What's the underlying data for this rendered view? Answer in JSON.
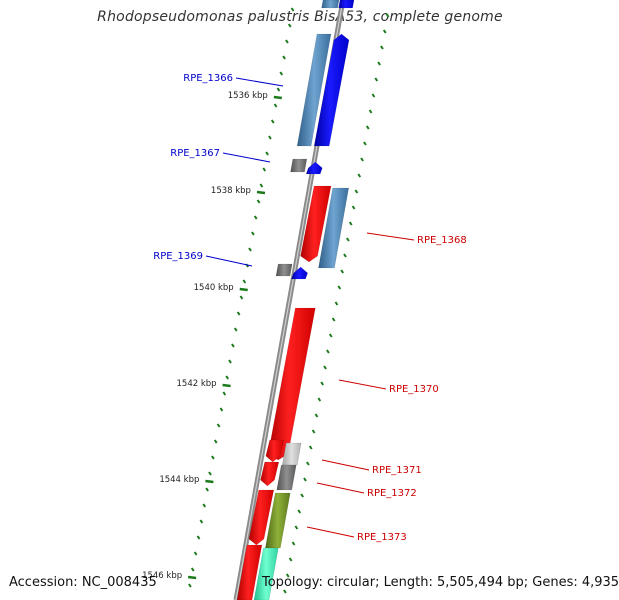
{
  "title": "Rhodopseudomonas palustris BisA53, complete genome",
  "footer": {
    "accession": "Accession: NC_008435",
    "summary": "Topology: circular; Length: 5,505,494 bp; Genes: 4,935"
  },
  "ticks": [
    {
      "label": "1536 kbp",
      "kbp": 1536
    },
    {
      "label": "1538 kbp",
      "kbp": 1538
    },
    {
      "label": "1540 kbp",
      "kbp": 1540
    },
    {
      "label": "1542 kbp",
      "kbp": 1542
    },
    {
      "label": "1544 kbp",
      "kbp": 1544
    },
    {
      "label": "1546 kbp",
      "kbp": 1546
    }
  ],
  "genes": [
    {
      "name": "RPE_1366",
      "strand": "reverse",
      "color": "#0000cc"
    },
    {
      "name": "RPE_1367",
      "strand": "reverse",
      "color": "#0000cc"
    },
    {
      "name": "RPE_1368",
      "strand": "forward",
      "color": "#cc0000"
    },
    {
      "name": "RPE_1369",
      "strand": "reverse",
      "color": "#0000cc"
    },
    {
      "name": "RPE_1370",
      "strand": "forward",
      "color": "#cc0000"
    },
    {
      "name": "RPE_1371",
      "strand": "forward",
      "color": "#cc0000"
    },
    {
      "name": "RPE_1372",
      "strand": "forward",
      "color": "#cc0000"
    },
    {
      "name": "RPE_1373",
      "strand": "forward",
      "color": "#cc0000"
    }
  ],
  "colors": {
    "forward_cds": "#ff0000",
    "reverse_cds": "#0000ff",
    "cog_steelblue": "#4682b4",
    "cog_gray": "#707070",
    "cog_lightgray": "#c0c0c0",
    "cog_olive": "#6b8e23",
    "cog_aquamarine": "#40e0b0",
    "backbone": "#8a8a8a",
    "tick": "#1a7a1a",
    "gc_dots": "#1a7a1a"
  }
}
